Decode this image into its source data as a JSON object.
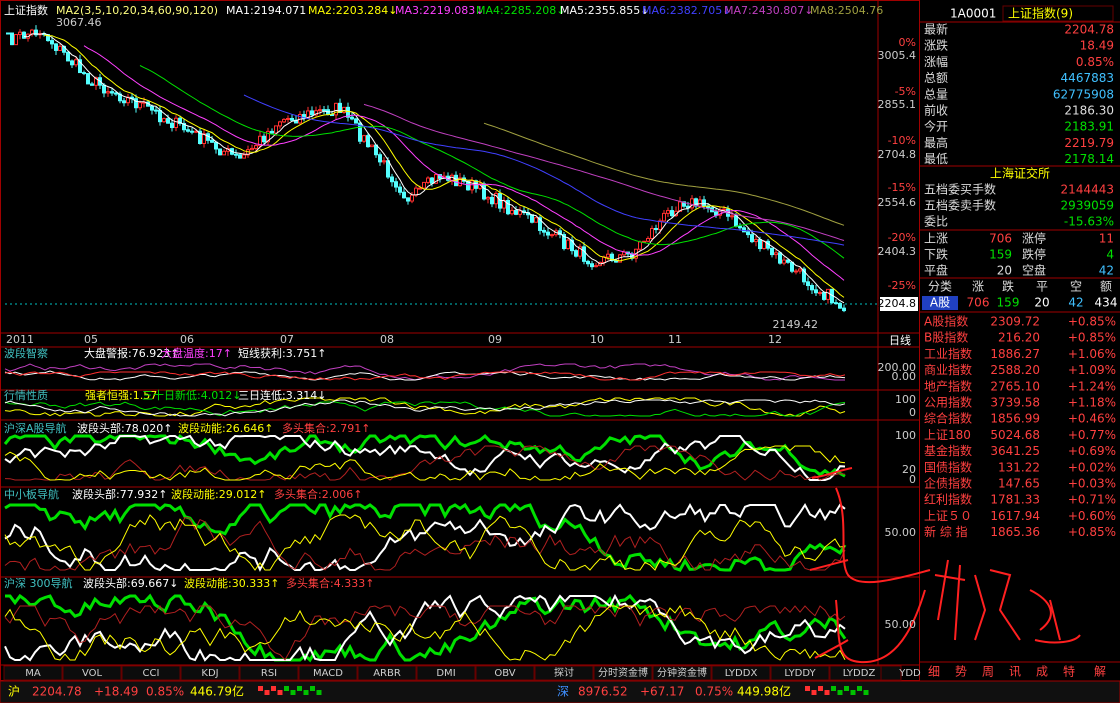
{
  "main_chart": {
    "title": "上证指数",
    "indicator": "MA2(3,5,10,20,34,60,90,120)",
    "ma_labels": [
      "MA1:2194.071",
      "MA2:2203.284↓",
      "MA3:2219.083↓",
      "MA4:2285.208↓",
      "MA5:2355.855↓",
      "MA6:2382.705↓",
      "MA7:2430.807↓",
      "MA8:2504.76"
    ],
    "high_label": "3067.46",
    "low_label": "2149.42",
    "price_ticks": [
      "3005.4",
      "2855.1",
      "2704.8",
      "2554.6",
      "2404.3"
    ],
    "pct_ticks": [
      "0%",
      "-5%",
      "-10%",
      "-15%",
      "-20%",
      "-25%"
    ],
    "current": "2204.8",
    "dates": [
      "2011",
      "05",
      "06",
      "07",
      "08",
      "09",
      "10",
      "11",
      "12"
    ],
    "period": "日线"
  },
  "panels": [
    {
      "name": "波段智察",
      "items": [
        "大盘警报:76.923↑",
        "大盘温度:17↑",
        "短线获利:3.751↑"
      ],
      "ticks": [
        "200.00",
        "0.00"
      ]
    },
    {
      "name": "行情性质",
      "items": [
        "强者恒强:1.57",
        "三十日新低:4.012↓",
        "三日连低:3.314↓"
      ],
      "ticks": [
        "100",
        "0"
      ]
    },
    {
      "name": "沪深A股导航",
      "items": [
        "波段头部:78.020↑",
        "波段动能:26.646↑",
        "多头集合:2.791↑"
      ],
      "ticks": [
        "100",
        "20",
        "0"
      ]
    },
    {
      "name": "中小板导航",
      "items": [
        "波段头部:77.932↑",
        "波段动能:29.012↑",
        "多头集合:2.006↑"
      ],
      "ticks": [
        "50.00"
      ]
    },
    {
      "name": "沪深 300导航",
      "items": [
        "波段头部:69.667↓",
        "波段动能:30.333↑",
        "多头集合:4.333↑"
      ],
      "ticks": [
        "50.00"
      ]
    }
  ],
  "tabs": [
    "MA",
    "VOL",
    "CCI",
    "KDJ",
    "RSI",
    "MACD",
    "ARBR",
    "DMI",
    "OBV",
    "探讨",
    "分时资金博",
    "分钟资金博",
    "LYDDX",
    "LYDDY",
    "LYDDZ",
    "YDD"
  ],
  "quote": {
    "code": "1A0001",
    "name": "上证指数(9)",
    "rows": [
      {
        "label": "最新",
        "value": "2204.78"
      },
      {
        "label": "涨跌",
        "value": "18.49"
      },
      {
        "label": "涨幅",
        "value": "0.85%"
      },
      {
        "label": "总额",
        "value": "4467883"
      },
      {
        "label": "总量",
        "value": "62775908"
      },
      {
        "label": "前收",
        "value": "2186.30"
      },
      {
        "label": "今开",
        "value": "2183.91"
      },
      {
        "label": "最高",
        "value": "2219.79"
      },
      {
        "label": "最低",
        "value": "2178.14"
      }
    ]
  },
  "exchange": "上海证交所",
  "orders": [
    {
      "label": "五档委买手数",
      "value": "2144443"
    },
    {
      "label": "五档委卖手数",
      "value": "2939059"
    },
    {
      "label": "委比",
      "value": "-15.63%"
    }
  ],
  "breadth": [
    [
      "上涨",
      "706",
      "涨停",
      "11"
    ],
    [
      "下跌",
      "159",
      "跌停",
      "4"
    ],
    [
      "平盘",
      "20",
      "空盘",
      "42"
    ]
  ],
  "class_table": {
    "header": [
      "分类",
      "涨",
      "跌",
      "平",
      "空",
      "额"
    ],
    "row": [
      "A股",
      "706",
      "159",
      "20",
      "42",
      "434"
    ]
  },
  "indices": [
    [
      "A股指数",
      "2309.72",
      "+0.85%"
    ],
    [
      "B股指数",
      "216.20",
      "+0.85%"
    ],
    [
      "工业指数",
      "1886.27",
      "+1.06%"
    ],
    [
      "商业指数",
      "2588.20",
      "+1.09%"
    ],
    [
      "地产指数",
      "2765.10",
      "+1.24%"
    ],
    [
      "公用指数",
      "3739.58",
      "+1.18%"
    ],
    [
      "综合指数",
      "1856.99",
      "+0.46%"
    ],
    [
      "上证180",
      "5024.68",
      "+0.77%"
    ],
    [
      "基金指数",
      "3641.25",
      "+0.69%"
    ],
    [
      "国债指数",
      "131.22",
      "+0.02%"
    ],
    [
      "企债指数",
      "147.65",
      "+0.03%"
    ],
    [
      "红利指数",
      "1781.33",
      "+0.71%"
    ],
    [
      "上证５０",
      "1617.94",
      "+0.60%"
    ],
    [
      "新 综 指",
      "1865.36",
      "+0.85%"
    ]
  ],
  "side_tabs": [
    "细",
    "势",
    "周",
    "讯",
    "成",
    "特",
    "解"
  ],
  "status": {
    "sh": [
      "沪",
      "2204.78",
      "+18.49",
      "0.85%",
      "446.79亿"
    ],
    "sz": [
      "深",
      "8976.52",
      "+67.17",
      "0.75%",
      "449.98亿"
    ]
  }
}
